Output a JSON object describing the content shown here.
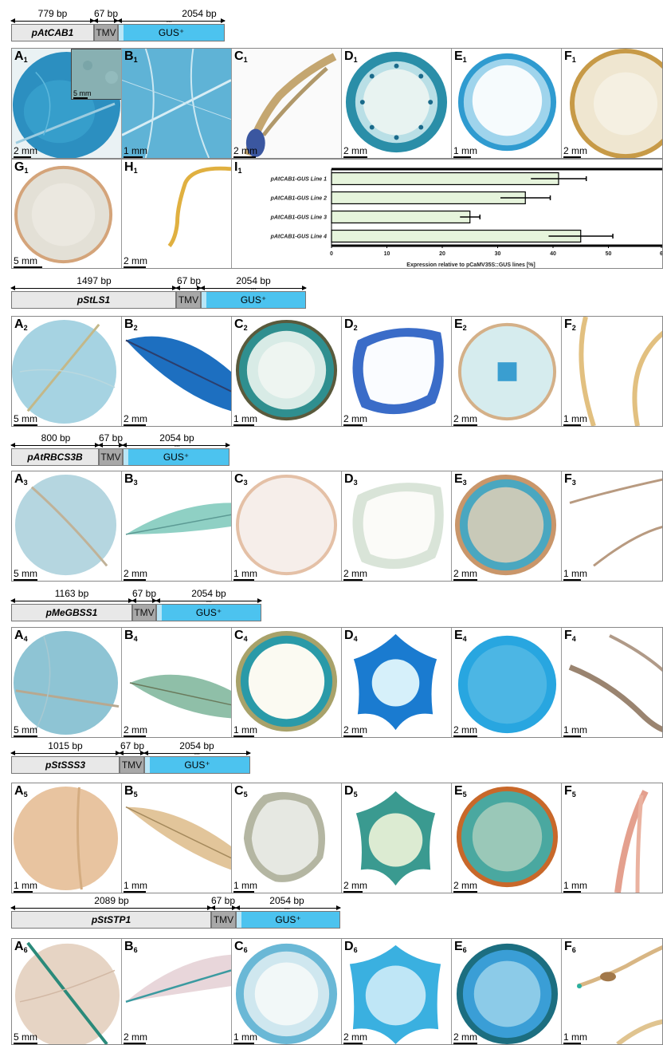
{
  "sections": [
    {
      "promoter": "pAtCAB1",
      "promoter_bp": "779 bp",
      "tmv_bp": "67 bp",
      "gus_bp": "2054 bp",
      "tmv": "TMV",
      "gus": "GUS⁺",
      "panels": [
        {
          "letter": "A",
          "sub": "1",
          "scale": "2 mm",
          "inset_scale": "5 mm"
        },
        {
          "letter": "B",
          "sub": "1",
          "scale": "1 mm"
        },
        {
          "letter": "C",
          "sub": "1",
          "scale": "2 mm"
        },
        {
          "letter": "D",
          "sub": "1",
          "scale": "2 mm"
        },
        {
          "letter": "E",
          "sub": "1",
          "scale": "1 mm"
        },
        {
          "letter": "F",
          "sub": "1",
          "scale": "2 mm"
        },
        {
          "letter": "G",
          "sub": "1",
          "scale": "5 mm"
        },
        {
          "letter": "H",
          "sub": "1",
          "scale": "2 mm"
        },
        {
          "letter": "I",
          "sub": "1"
        }
      ]
    },
    {
      "promoter": "pStLS1",
      "promoter_bp": "1497 bp",
      "tmv_bp": "67 bp",
      "gus_bp": "2054 bp",
      "tmv": "TMV",
      "gus": "GUS⁺",
      "panels": [
        {
          "letter": "A",
          "sub": "2",
          "scale": "5 mm"
        },
        {
          "letter": "B",
          "sub": "2",
          "scale": "2 mm"
        },
        {
          "letter": "C",
          "sub": "2",
          "scale": "1 mm"
        },
        {
          "letter": "D",
          "sub": "2",
          "scale": "2 mm"
        },
        {
          "letter": "E",
          "sub": "2",
          "scale": "2 mm"
        },
        {
          "letter": "F",
          "sub": "2",
          "scale": "1 mm"
        }
      ]
    },
    {
      "promoter": "pAtRBCS3B",
      "promoter_bp": "800 bp",
      "tmv_bp": "67 bp",
      "gus_bp": "2054 bp",
      "tmv": "TMV",
      "gus": "GUS⁺",
      "panels": [
        {
          "letter": "A",
          "sub": "3",
          "scale": "5 mm"
        },
        {
          "letter": "B",
          "sub": "3",
          "scale": "2 mm"
        },
        {
          "letter": "C",
          "sub": "3",
          "scale": "1 mm"
        },
        {
          "letter": "D",
          "sub": "3",
          "scale": "2 mm"
        },
        {
          "letter": "E",
          "sub": "3",
          "scale": "2 mm"
        },
        {
          "letter": "F",
          "sub": "3",
          "scale": "1 mm"
        }
      ]
    },
    {
      "promoter": "pMeGBSS1",
      "promoter_bp": "1163 bp",
      "tmv_bp": "67 bp",
      "gus_bp": "2054 bp",
      "tmv": "TMV",
      "gus": "GUS⁺",
      "panels": [
        {
          "letter": "A",
          "sub": "4",
          "scale": "5 mm"
        },
        {
          "letter": "B",
          "sub": "4",
          "scale": "2 mm"
        },
        {
          "letter": "C",
          "sub": "4",
          "scale": "1 mm"
        },
        {
          "letter": "D",
          "sub": "4",
          "scale": "2 mm"
        },
        {
          "letter": "E",
          "sub": "4",
          "scale": "2 mm"
        },
        {
          "letter": "F",
          "sub": "4",
          "scale": "1 mm"
        }
      ]
    },
    {
      "promoter": "pStSSS3",
      "promoter_bp": "1015 bp",
      "tmv_bp": "67 bp",
      "gus_bp": "2054 bp",
      "tmv": "TMV",
      "gus": "GUS⁺",
      "panels": [
        {
          "letter": "A",
          "sub": "5",
          "scale": "1 mm"
        },
        {
          "letter": "B",
          "sub": "5",
          "scale": "1 mm"
        },
        {
          "letter": "C",
          "sub": "5",
          "scale": "1 mm"
        },
        {
          "letter": "D",
          "sub": "5",
          "scale": "2 mm"
        },
        {
          "letter": "E",
          "sub": "5",
          "scale": "2 mm"
        },
        {
          "letter": "F",
          "sub": "5",
          "scale": "1 mm"
        }
      ]
    },
    {
      "promoter": "pStSTP1",
      "promoter_bp": "2089 bp",
      "tmv_bp": "67 bp",
      "gus_bp": "2054 bp",
      "tmv": "TMV",
      "gus": "GUS⁺",
      "panels": [
        {
          "letter": "A",
          "sub": "6",
          "scale": "5 mm"
        },
        {
          "letter": "B",
          "sub": "6",
          "scale": "2 mm"
        },
        {
          "letter": "C",
          "sub": "6",
          "scale": "1 mm"
        },
        {
          "letter": "D",
          "sub": "6",
          "scale": "2 mm"
        },
        {
          "letter": "E",
          "sub": "6",
          "scale": "2 mm"
        },
        {
          "letter": "F",
          "sub": "6",
          "scale": "1 mm"
        }
      ]
    }
  ],
  "chart_data": {
    "type": "bar",
    "orientation": "horizontal",
    "categories": [
      "pAtCAB1-GUS Line 1",
      "pAtCAB1-GUS Line 2",
      "pAtCAB1-GUS Line 3",
      "pAtCAB1-GUS Line 4"
    ],
    "values": [
      41,
      35,
      25,
      45
    ],
    "errors": [
      5,
      4.5,
      1.8,
      5.8
    ],
    "xlabel": "Expression relative to pCaMV35S::GUS lines [%]",
    "xlim": [
      0,
      60
    ],
    "xticks": [
      "0",
      "10",
      "20",
      "30",
      "40",
      "50",
      "6"
    ],
    "bar_color": "#e6f4dc",
    "grid": false
  }
}
